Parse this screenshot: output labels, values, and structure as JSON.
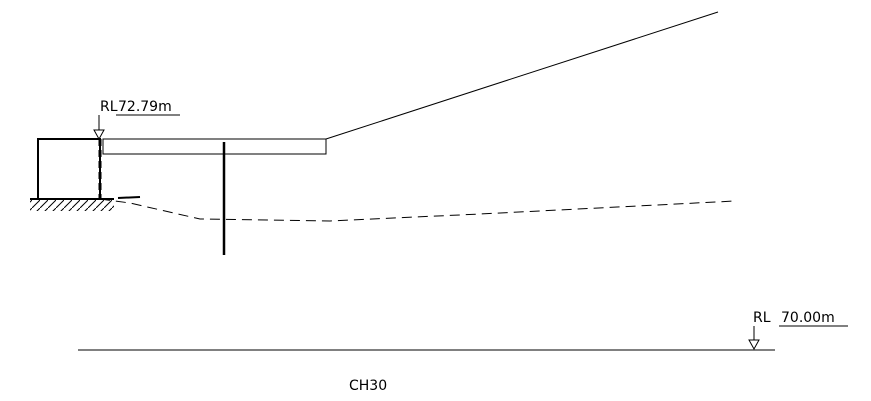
{
  "levels": {
    "top": {
      "label": "RL",
      "value": "72.79m"
    },
    "datum": {
      "label": "RL",
      "value": "70.00m"
    }
  },
  "section": {
    "chainage": "CH30"
  },
  "colors": {
    "line": "#000000",
    "background": "#ffffff"
  }
}
